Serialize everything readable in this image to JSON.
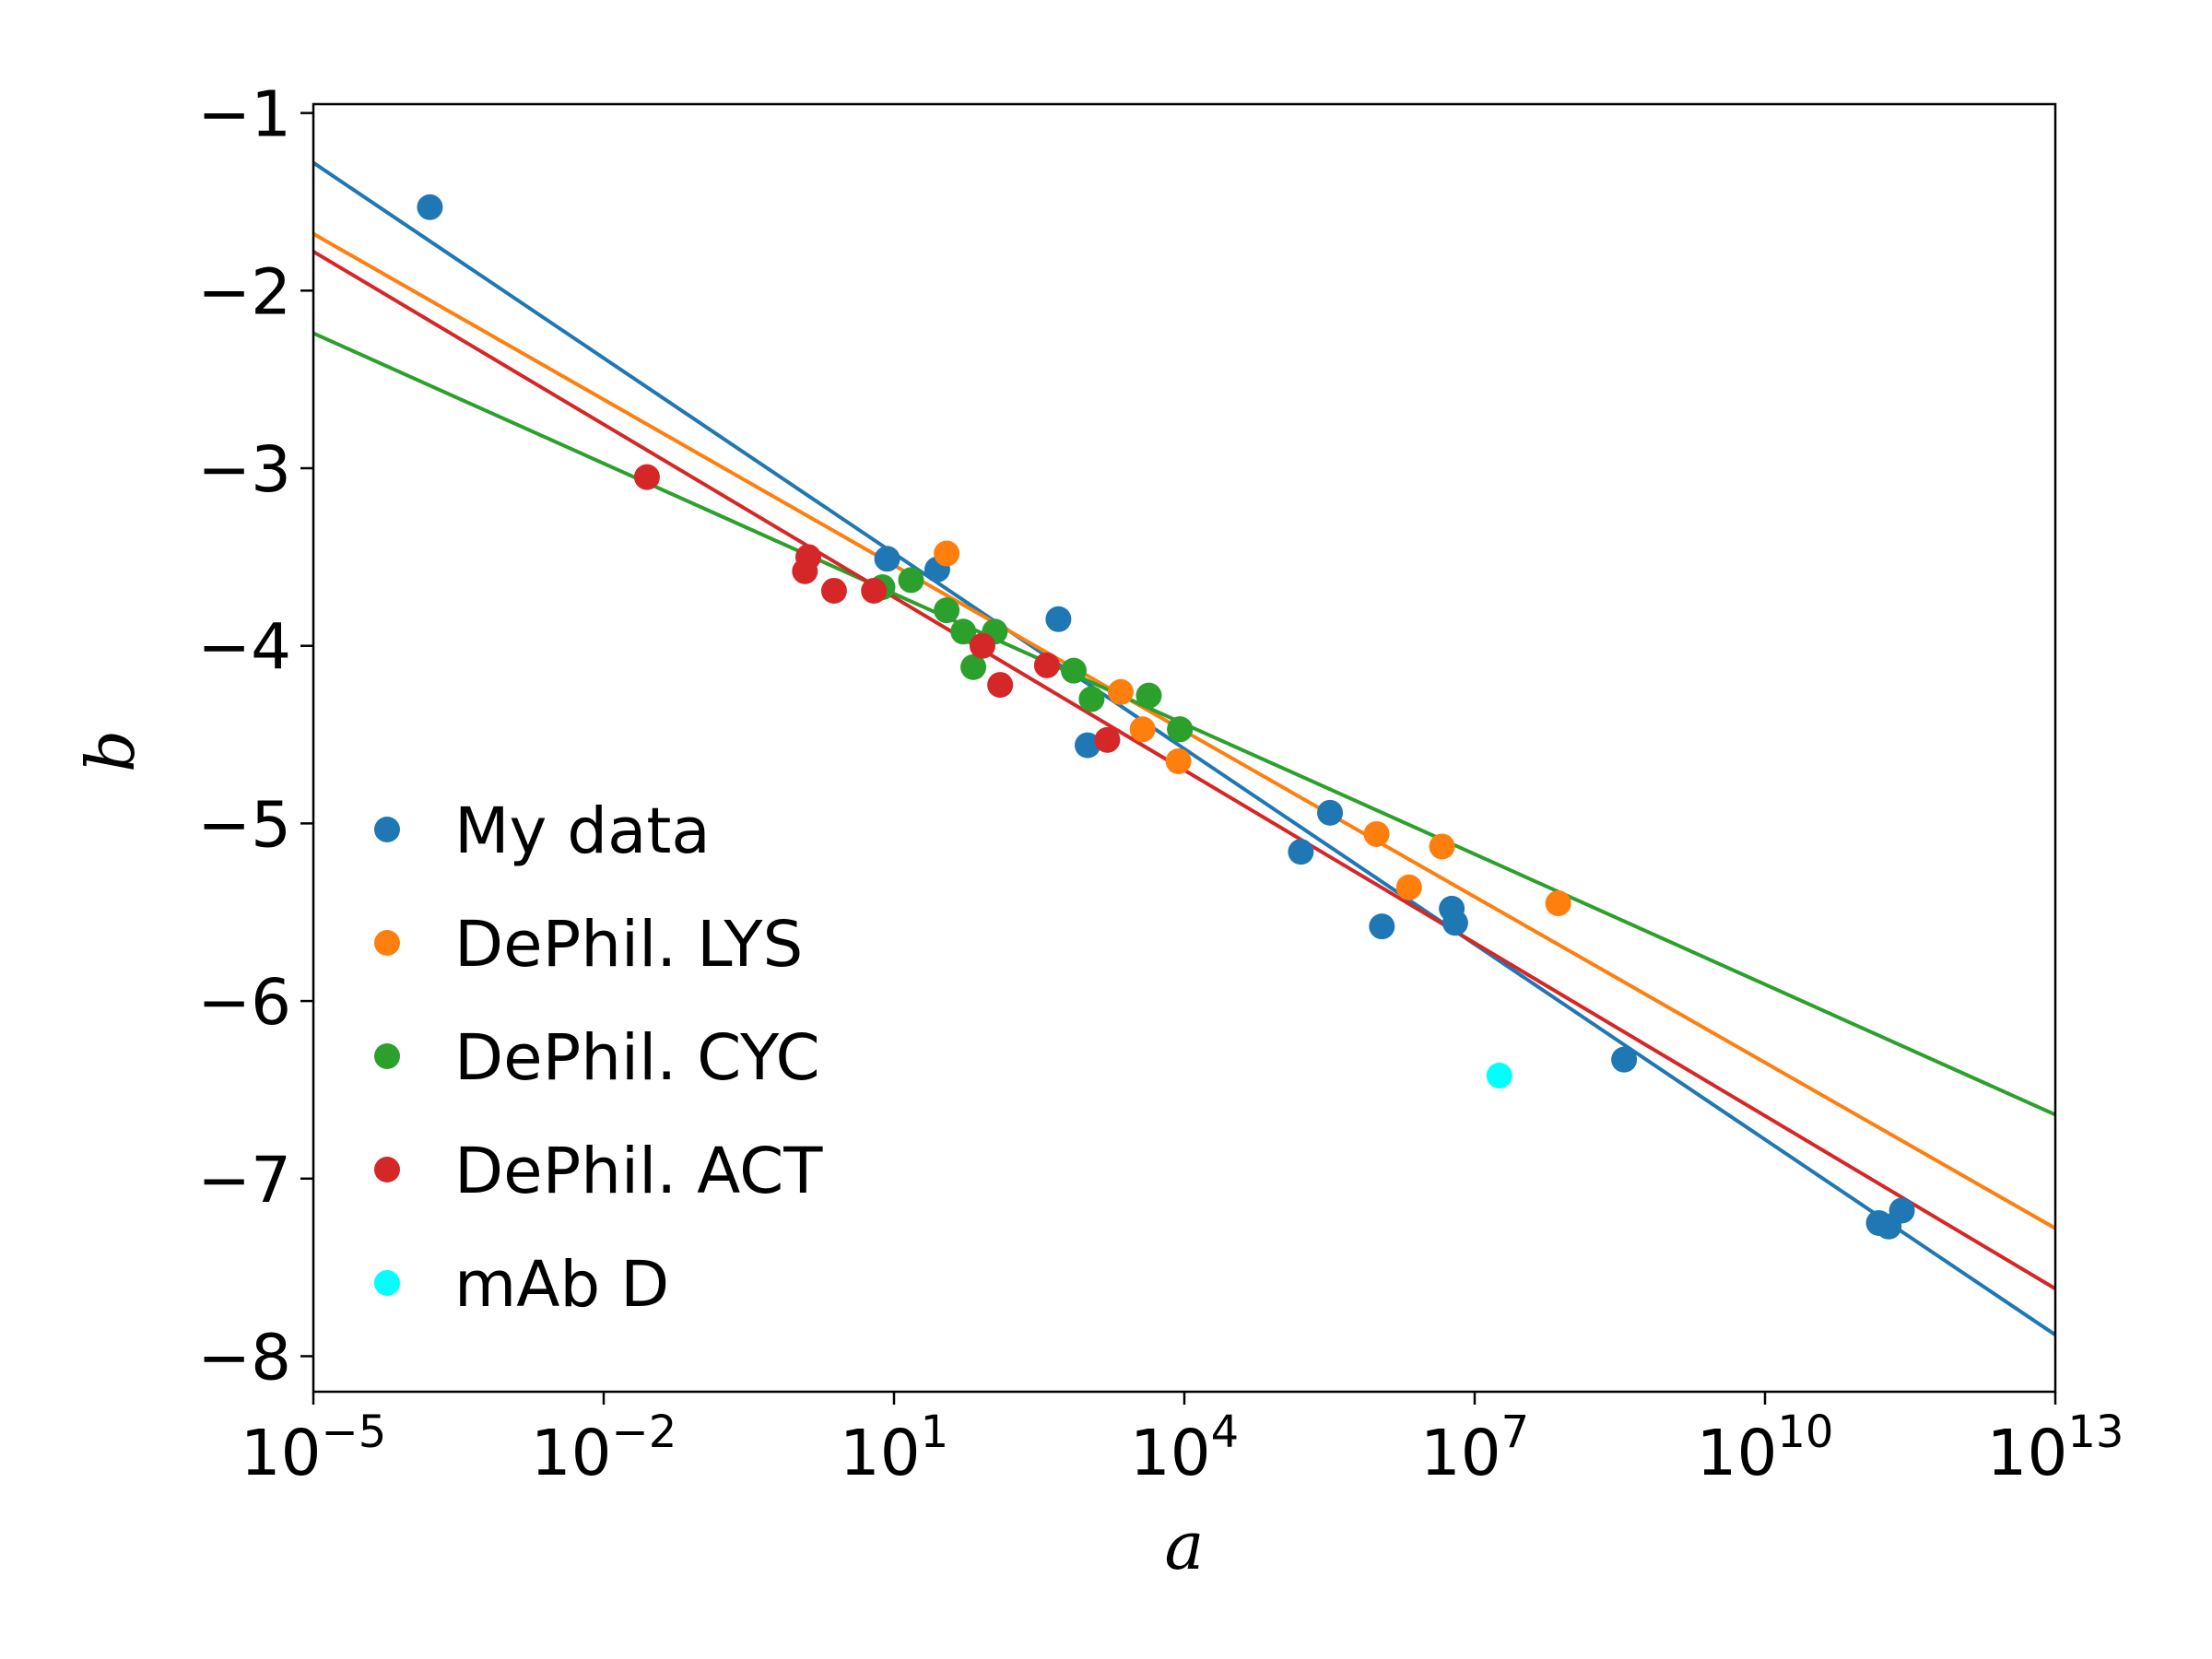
{
  "chart_data": {
    "type": "scatter",
    "xlabel": "a",
    "ylabel": "b",
    "xscale": "log",
    "xlim_exp": [
      -5,
      13
    ],
    "ylim": [
      -8.2,
      -0.95
    ],
    "x_ticks": [
      {
        "base": "10",
        "exp": "−5"
      },
      {
        "base": "10",
        "exp": "−2"
      },
      {
        "base": "10",
        "exp": "1"
      },
      {
        "base": "10",
        "exp": "4"
      },
      {
        "base": "10",
        "exp": "7"
      },
      {
        "base": "10",
        "exp": "10"
      },
      {
        "base": "10",
        "exp": "13"
      }
    ],
    "y_ticks": [
      "−1",
      "−2",
      "−3",
      "−4",
      "−5",
      "−6",
      "−7",
      "−8"
    ],
    "legend_position": "lower-left",
    "series": [
      {
        "name": "My data",
        "color": "#1f77b4",
        "points": [
          [
            0.00016,
            -1.53
          ],
          [
            8.5,
            -3.51
          ],
          [
            28,
            -3.57
          ],
          [
            500,
            -3.85
          ],
          [
            1000,
            -4.56
          ],
          [
            9000,
            -4.47
          ],
          [
            160000.0,
            -5.16
          ],
          [
            320000.0,
            -4.94
          ],
          [
            1100000.0,
            -5.58
          ],
          [
            5800000.0,
            -5.48
          ],
          [
            6300000.0,
            -5.56
          ],
          [
            350000000.0,
            -6.33
          ],
          [
            150000000000.0,
            -7.25
          ],
          [
            190000000000.0,
            -7.27
          ],
          [
            260000000000.0,
            -7.18
          ]
        ],
        "fit": [
          [
            1e-05,
            -1.28
          ],
          [
            10000000000000.0,
            -7.88
          ]
        ]
      },
      {
        "name": "DePhil. LYS",
        "color": "#ff7f0e",
        "points": [
          [
            35,
            -3.48
          ],
          [
            2200,
            -4.26
          ],
          [
            3700,
            -4.47
          ],
          [
            8700,
            -4.65
          ],
          [
            970000.0,
            -5.06
          ],
          [
            2100000.0,
            -5.36
          ],
          [
            4600000.0,
            -5.13
          ],
          [
            73000000.0,
            -5.45
          ]
        ],
        "fit": [
          [
            1e-05,
            -1.68
          ],
          [
            10000000000000.0,
            -7.28
          ]
        ]
      },
      {
        "name": "DePhil. CYC",
        "color": "#2ca02c",
        "points": [
          [
            7.6,
            -3.67
          ],
          [
            15,
            -3.63
          ],
          [
            35,
            -3.8
          ],
          [
            52,
            -3.92
          ],
          [
            66,
            -4.12
          ],
          [
            110,
            -3.92
          ],
          [
            720,
            -4.14
          ],
          [
            1100,
            -4.3
          ],
          [
            4300,
            -4.28
          ],
          [
            9000,
            -4.47
          ]
        ],
        "fit": [
          [
            1e-05,
            -2.24
          ],
          [
            10000000000000.0,
            -6.64
          ]
        ]
      },
      {
        "name": "DePhil. ACT",
        "color": "#d62728",
        "points": [
          [
            0.028,
            -3.05
          ],
          [
            1.3,
            -3.5
          ],
          [
            1.2,
            -3.58
          ],
          [
            2.4,
            -3.69
          ],
          [
            6.2,
            -3.69
          ],
          [
            82,
            -4.0
          ],
          [
            125,
            -4.22
          ],
          [
            380,
            -4.11
          ],
          [
            1600,
            -4.53
          ]
        ],
        "fit": [
          [
            1e-05,
            -1.78
          ],
          [
            10000000000000.0,
            -7.62
          ]
        ]
      },
      {
        "name": "mAb D",
        "color": "#00ffff",
        "points": [
          [
            18000000.0,
            -6.42
          ]
        ]
      }
    ]
  }
}
